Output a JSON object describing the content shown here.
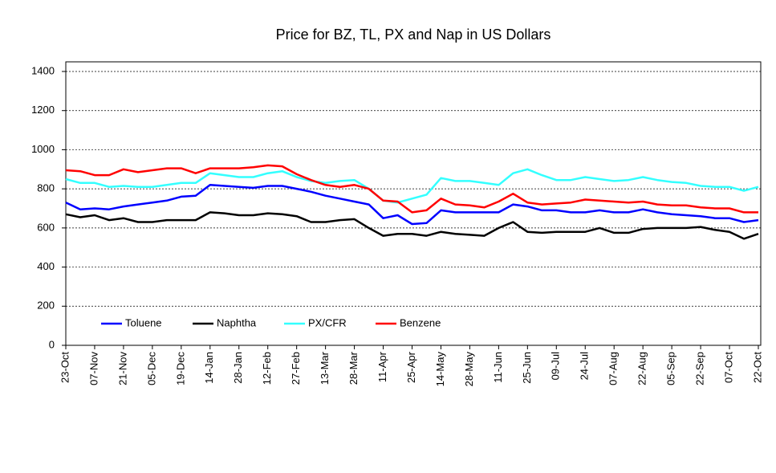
{
  "chart_data": {
    "type": "line",
    "title": "Price for BZ, TL, PX and Nap in US Dollars",
    "categories": [
      "23-Oct",
      null,
      "07-Nov",
      null,
      "21-Nov",
      null,
      "05-Dec",
      null,
      "19-Dec",
      null,
      "14-Jan",
      null,
      "28-Jan",
      null,
      "12-Feb",
      null,
      "27-Feb",
      null,
      "13-Mar",
      null,
      "28-Mar",
      null,
      "11-Apr",
      null,
      "25-Apr",
      null,
      "14-May",
      null,
      "28-May",
      null,
      "11-Jun",
      null,
      "25-Jun",
      null,
      "09-Jul",
      null,
      "24-Jul",
      null,
      "07-Aug",
      null,
      "22-Aug",
      null,
      "05-Sep",
      null,
      "22-Sep",
      null,
      "07-Oct",
      null,
      "22-Oct"
    ],
    "series": [
      {
        "name": "Toluene",
        "color": "#0000ff",
        "values": [
          730,
          695,
          700,
          695,
          710,
          720,
          730,
          740,
          760,
          765,
          820,
          815,
          810,
          805,
          815,
          815,
          800,
          785,
          765,
          750,
          735,
          720,
          650,
          665,
          620,
          625,
          690,
          680,
          680,
          680,
          680,
          720,
          710,
          690,
          690,
          680,
          680,
          690,
          680,
          680,
          695,
          680,
          670,
          665,
          660,
          650,
          650,
          630,
          640
        ]
      },
      {
        "name": "Naphtha",
        "color": "#000000",
        "values": [
          670,
          655,
          665,
          640,
          650,
          630,
          630,
          640,
          640,
          640,
          680,
          675,
          665,
          665,
          675,
          670,
          660,
          630,
          630,
          640,
          645,
          600,
          560,
          570,
          570,
          560,
          580,
          570,
          565,
          560,
          600,
          630,
          580,
          575,
          580,
          580,
          580,
          600,
          575,
          575,
          595,
          600,
          600,
          600,
          605,
          590,
          580,
          545,
          570
        ]
      },
      {
        "name": "PX/CFR",
        "color": "#33ffff",
        "values": [
          850,
          830,
          830,
          810,
          815,
          810,
          810,
          820,
          830,
          830,
          880,
          870,
          860,
          860,
          880,
          890,
          860,
          840,
          830,
          840,
          845,
          800,
          740,
          730,
          750,
          770,
          855,
          840,
          840,
          830,
          820,
          880,
          900,
          870,
          845,
          845,
          860,
          850,
          840,
          845,
          860,
          845,
          835,
          830,
          815,
          810,
          810,
          790,
          810
        ]
      },
      {
        "name": "Benzene",
        "color": "#ff0000",
        "values": [
          895,
          890,
          870,
          870,
          900,
          885,
          895,
          905,
          905,
          880,
          905,
          905,
          905,
          910,
          920,
          915,
          875,
          845,
          820,
          810,
          820,
          800,
          740,
          735,
          680,
          690,
          750,
          720,
          715,
          705,
          735,
          775,
          730,
          720,
          725,
          730,
          745,
          740,
          735,
          730,
          735,
          720,
          715,
          715,
          705,
          700,
          700,
          680,
          680
        ]
      }
    ],
    "ylim": [
      0,
      1400
    ],
    "yticks": [
      0,
      200,
      400,
      600,
      800,
      1000,
      1200,
      1400
    ],
    "grid": true
  }
}
